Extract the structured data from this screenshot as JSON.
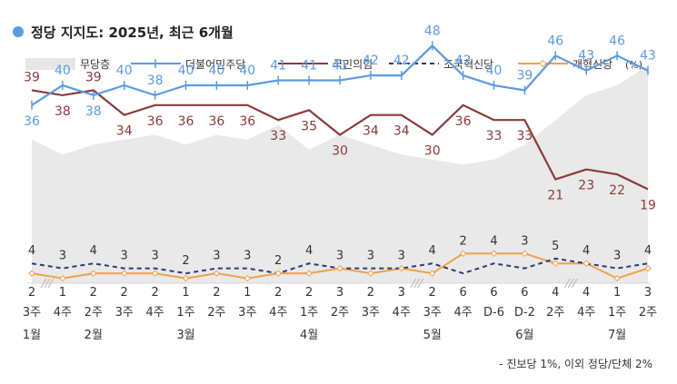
{
  "chart_data": {
    "type": "line",
    "title": "정당 지지도: 2025년, 최근 6개월",
    "unit_note": "(%)",
    "footnote": "- 진보당 1%, 이외 정당/단체 2%",
    "x": [
      "3주",
      "4주",
      "2주",
      "3주",
      "4주",
      "1주",
      "2주",
      "3주",
      "4주",
      "1주",
      "2주",
      "3주",
      "4주",
      "3주",
      "4주",
      "D-6",
      "D-2",
      "2주",
      "4주",
      "1주",
      "2주"
    ],
    "month_labels": [
      {
        "label": "1월",
        "index": 0
      },
      {
        "label": "2월",
        "index": 2
      },
      {
        "label": "3월",
        "index": 5
      },
      {
        "label": "4월",
        "index": 9
      },
      {
        "label": "5월",
        "index": 13
      },
      {
        "label": "6월",
        "index": 16
      },
      {
        "label": "7월",
        "index": 19
      }
    ],
    "axis_breaks_after_index": [
      0,
      12,
      17
    ],
    "series": [
      {
        "name": "무당층",
        "style": "area",
        "color": "#e9e9e9",
        "values": [
          29,
          26,
          28,
          29,
          30,
          28,
          30,
          29,
          32,
          27,
          30,
          28,
          26,
          25,
          24,
          25,
          28,
          33,
          38,
          40,
          44
        ]
      },
      {
        "name": "더불어민주당",
        "style": "line-plus",
        "color": "#5b9be3",
        "values": [
          36,
          40,
          38,
          40,
          38,
          40,
          40,
          40,
          41,
          41,
          41,
          42,
          42,
          48,
          42,
          40,
          39,
          46,
          43,
          46,
          43
        ]
      },
      {
        "name": "국민의힘",
        "style": "line",
        "color": "#8b3a3a",
        "values": [
          39,
          38,
          39,
          34,
          36,
          36,
          36,
          36,
          33,
          35,
          30,
          34,
          34,
          30,
          36,
          33,
          33,
          21,
          23,
          22,
          19
        ]
      },
      {
        "name": "조국혁신당",
        "style": "dashed",
        "color": "#2e3b78",
        "values": [
          4,
          3,
          4,
          3,
          3,
          2,
          3,
          3,
          2,
          4,
          3,
          3,
          3,
          4,
          2,
          4,
          3,
          5,
          4,
          3,
          4
        ]
      },
      {
        "name": "개혁신당",
        "style": "line-diamond",
        "color": "#f0a04b",
        "values": [
          2,
          1,
          2,
          2,
          2,
          1,
          2,
          1,
          2,
          2,
          3,
          2,
          3,
          2,
          6,
          6,
          6,
          4,
          4,
          1,
          3
        ]
      }
    ]
  }
}
